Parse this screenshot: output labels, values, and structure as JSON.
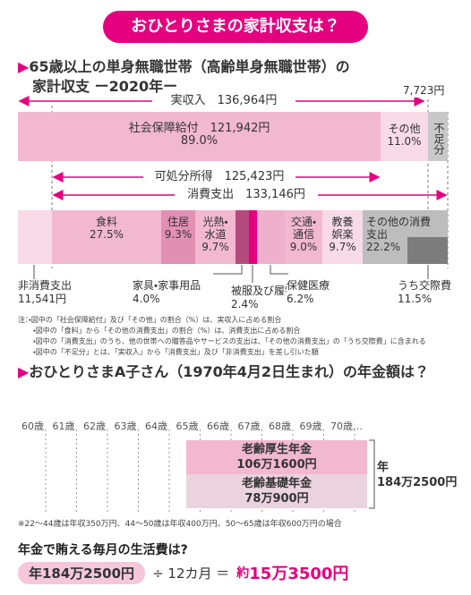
{
  "header": {
    "title": "おひとりさまの家計収支は？"
  },
  "budget": {
    "title": [
      "65歳以上の単身無職世帯（高齢単身無職世帯）の",
      "家計収支 ー2020年ー"
    ],
    "income_total": "実収入　136,964円",
    "shortfall_amount": "7,723円",
    "income": [
      {
        "label": "社会保障給付　121,942円",
        "share": "89.0%"
      },
      {
        "label": "その他",
        "share": "11.0%"
      },
      {
        "label": "不足分"
      }
    ],
    "disposable": "可処分所得　125,423円",
    "consumption_total": "消費支出　133,146円",
    "expenses": [
      {
        "label": [
          "食料"
        ],
        "share": "27.5%"
      },
      {
        "label": [
          "住居"
        ],
        "share": "9.3%"
      },
      {
        "label": [
          "光熱・",
          "水道"
        ],
        "share": "9.7%"
      },
      {
        "label": [
          "交通・",
          "通信"
        ],
        "share": "9.0%"
      },
      {
        "label": [
          "教養",
          "娯楽"
        ],
        "share": "9.7%"
      },
      {
        "label": [
          "その他の消費",
          "支出"
        ],
        "share": "22.2%"
      }
    ],
    "below": [
      {
        "label": "非消費支出",
        "value": "11,541円"
      },
      {
        "label": "家具・家事用品",
        "value": "4.0%"
      },
      {
        "label": "被服及び履物",
        "value": "2.4%"
      },
      {
        "label": "保健医療",
        "value": "6.2%"
      },
      {
        "label": "うち交際費",
        "value": "11.5%"
      }
    ],
    "notes": [
      "注：・図中の「社会保障給付」及び「その他」の割合（%）は、実収入に占める割合",
      "・図中の「食料」から「その他の消費支出」の割合（%）は、消費支出に占める割合",
      "・図中の「消費支出」のうち、他の世帯への贈答品やサービスの支出は、「その他の消費支出」の「うち交際費」に含まれる",
      "・図中の「不足分」とは、「実収入」から「消費支出」及び「非消費支出」を差し引いた額"
    ]
  },
  "pension": {
    "title": "おひとりさまA子さん（1970年4月2日生まれ）の年金額は？",
    "ages": [
      "60歳",
      "61歳",
      "62歳",
      "63歳",
      "64歳",
      "65歳",
      "66歳",
      "67歳",
      "68歳",
      "69歳",
      "70歳…"
    ],
    "benefits": [
      {
        "name": "老齢厚生年金",
        "amount": "106万1600円"
      },
      {
        "name": "老齢基礎年金",
        "amount": "78万900円"
      }
    ],
    "total_label": "年",
    "total": "184万2500円",
    "footnote": "※22～44歳は年収350万円、44～50歳は年収400万円、50～65歳は年収600万円の場合"
  },
  "monthly": {
    "question": "年金で賄える毎月の生活費は?",
    "annual": "年184万2500円",
    "divisor": "÷ 12カ月 ＝",
    "result_prefix": "約",
    "result": "15万3500円"
  }
}
